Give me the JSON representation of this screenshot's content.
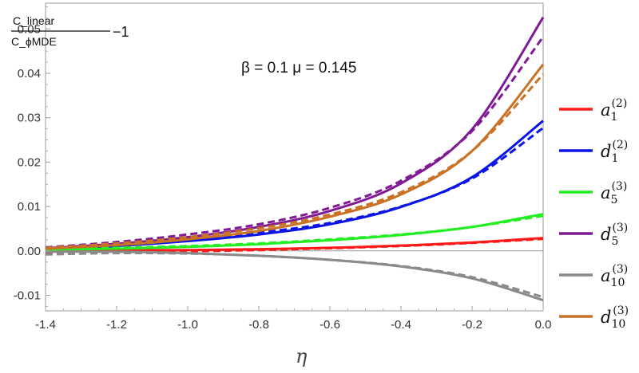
{
  "chart_data": {
    "type": "line",
    "xlabel": "η",
    "ylabel": {
      "numerator": "C_linear",
      "denominator": "C_ϕMDE",
      "suffix": "−1"
    },
    "annotation": "β = 0.1 μ = 0.145",
    "xlim": [
      -1.4,
      0.0
    ],
    "ylim": [
      -0.0135,
      0.0558
    ],
    "x_ticks": [
      -1.4,
      -1.2,
      -1.0,
      -0.8,
      -0.6,
      -0.4,
      -0.2,
      0.0
    ],
    "x_tick_labels": [
      "-1.4",
      "-1.2",
      "-1.0",
      "-0.8",
      "-0.6",
      "-0.4",
      "-0.2",
      "0.0"
    ],
    "y_ticks": [
      -0.01,
      0.0,
      0.01,
      0.02,
      0.03,
      0.04,
      0.05
    ],
    "y_tick_labels": [
      "-0.01",
      "0.00",
      "0.01",
      "0.02",
      "0.03",
      "0.04",
      "0.05"
    ],
    "x": [
      -1.4,
      -1.2,
      -1.0,
      -0.8,
      -0.6,
      -0.4,
      -0.2,
      0.0
    ],
    "legend_position": "right",
    "grid": false,
    "series": [
      {
        "name": "a1(2)",
        "base": "a",
        "sub": "1",
        "sup": "(2)",
        "color": "#ff1a1a",
        "solid": [
          0.0,
          0.0001,
          0.0002,
          0.0004,
          0.0007,
          0.0012,
          0.0019,
          0.0029
        ],
        "dashed": [
          -0.0005,
          -0.0003,
          -0.0001,
          0.0002,
          0.0006,
          0.0011,
          0.0018,
          0.0027
        ]
      },
      {
        "name": "d1(2)",
        "base": "d",
        "sub": "1",
        "sup": "(2)",
        "color": "#0a14e6",
        "solid": [
          0.0004,
          0.0011,
          0.0022,
          0.0037,
          0.006,
          0.0099,
          0.0166,
          0.0293
        ],
        "dashed": [
          0.0006,
          0.0014,
          0.0025,
          0.0041,
          0.0063,
          0.01,
          0.0163,
          0.0277
        ]
      },
      {
        "name": "a5(3)",
        "base": "a",
        "sub": "5",
        "sup": "(3)",
        "color": "#22ee22",
        "solid": [
          0.0003,
          0.0005,
          0.0009,
          0.0015,
          0.0024,
          0.0036,
          0.0054,
          0.0083
        ],
        "dashed": [
          0.0004,
          0.0007,
          0.0011,
          0.0017,
          0.0026,
          0.0037,
          0.0054,
          0.0079
        ]
      },
      {
        "name": "d5(3)",
        "base": "d",
        "sub": "5",
        "sup": "(3)",
        "color": "#801a94",
        "solid": [
          0.0006,
          0.0016,
          0.0031,
          0.0054,
          0.009,
          0.0152,
          0.0274,
          0.0526
        ],
        "dashed": [
          0.0008,
          0.002,
          0.0037,
          0.006,
          0.0097,
          0.0158,
          0.027,
          0.0482
        ]
      },
      {
        "name": "a10(3)",
        "base": "a",
        "sub": "10",
        "sup": "(3)",
        "color": "#8a8a8a",
        "solid": [
          -0.0002,
          -0.0002,
          -0.0005,
          -0.0011,
          -0.002,
          -0.0035,
          -0.0062,
          -0.0111
        ],
        "dashed": [
          -0.0008,
          -0.0005,
          -0.0006,
          -0.0011,
          -0.002,
          -0.0034,
          -0.0059,
          -0.0104
        ]
      },
      {
        "name": "d10(3)",
        "base": "d",
        "sub": "10",
        "sup": "(3)",
        "color": "#c97226",
        "solid": [
          0.0005,
          0.0013,
          0.0026,
          0.0045,
          0.0077,
          0.0127,
          0.0225,
          0.042
        ],
        "dashed": [
          0.0007,
          0.0017,
          0.0031,
          0.0051,
          0.0082,
          0.0132,
          0.0225,
          0.0398
        ]
      }
    ]
  }
}
